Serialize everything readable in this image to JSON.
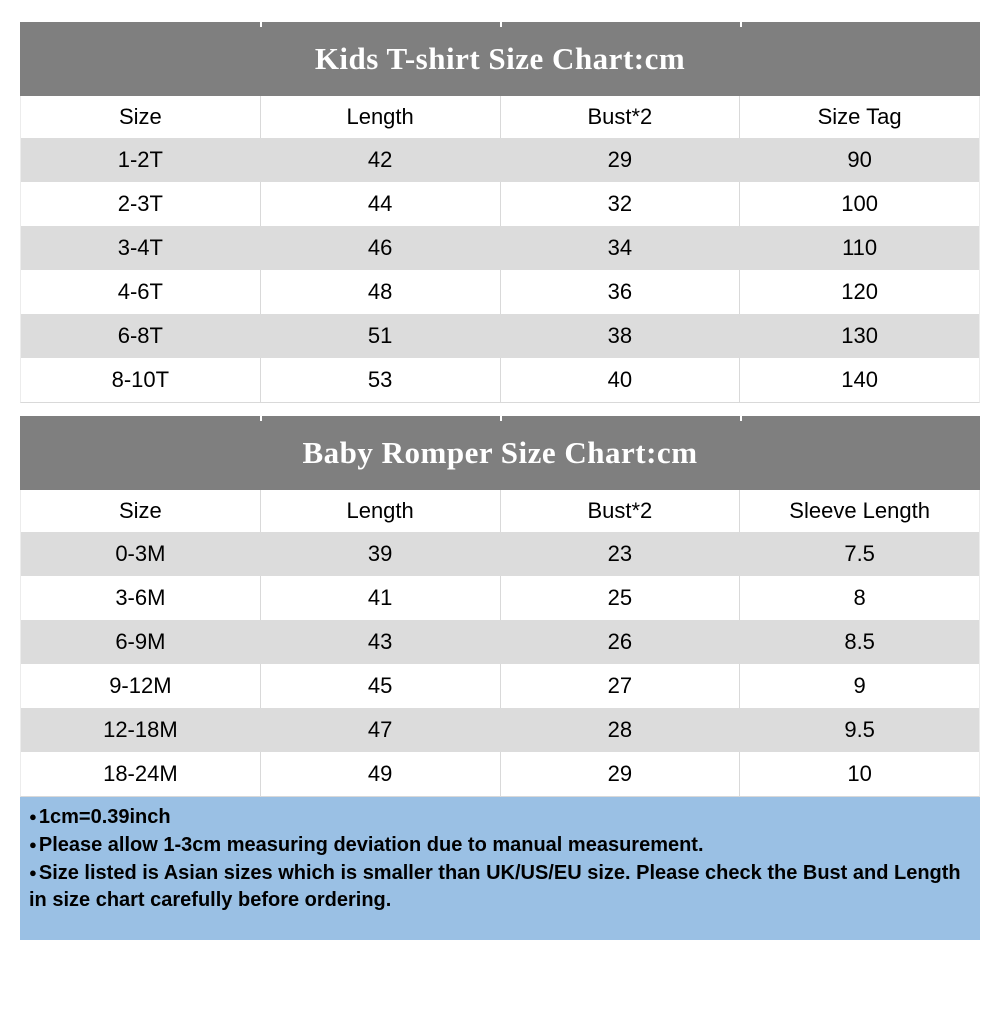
{
  "colors": {
    "title-bg": "#7f7f7f",
    "title-text": "#ffffff",
    "row-alt-bg": "#dcdcdc",
    "divider": "#d9d9d9",
    "note-bg": "#9ac0e4",
    "text": "#000000"
  },
  "tables": [
    {
      "title": "Kids T-shirt Size Chart:cm",
      "columns": [
        "Size",
        "Length",
        "Bust*2",
        "Size Tag"
      ],
      "rows": [
        [
          "1-2T",
          42,
          29,
          90
        ],
        [
          "2-3T",
          44,
          32,
          100
        ],
        [
          "3-4T",
          46,
          34,
          110
        ],
        [
          "4-6T",
          48,
          36,
          120
        ],
        [
          "6-8T",
          51,
          38,
          130
        ],
        [
          "8-10T",
          53,
          40,
          140
        ]
      ]
    },
    {
      "title": "Baby Romper Size Chart:cm",
      "columns": [
        "Size",
        "Length",
        "Bust*2",
        "Sleeve Length"
      ],
      "rows": [
        [
          "0-3M",
          39,
          23,
          7.5
        ],
        [
          "3-6M",
          41,
          25,
          8
        ],
        [
          "6-9M",
          43,
          26,
          8.5
        ],
        [
          "9-12M",
          45,
          27,
          9
        ],
        [
          "12-18M",
          47,
          28,
          9.5
        ],
        [
          "18-24M",
          49,
          29,
          10
        ]
      ]
    }
  ],
  "notes": {
    "bullet": "●",
    "lines": [
      "1cm=0.39inch",
      "Please allow 1-3cm measuring deviation due to manual measurement.",
      "Size listed is Asian sizes which is smaller than UK/US/EU size. Please check the Bust and Length in size chart carefully before ordering."
    ]
  }
}
